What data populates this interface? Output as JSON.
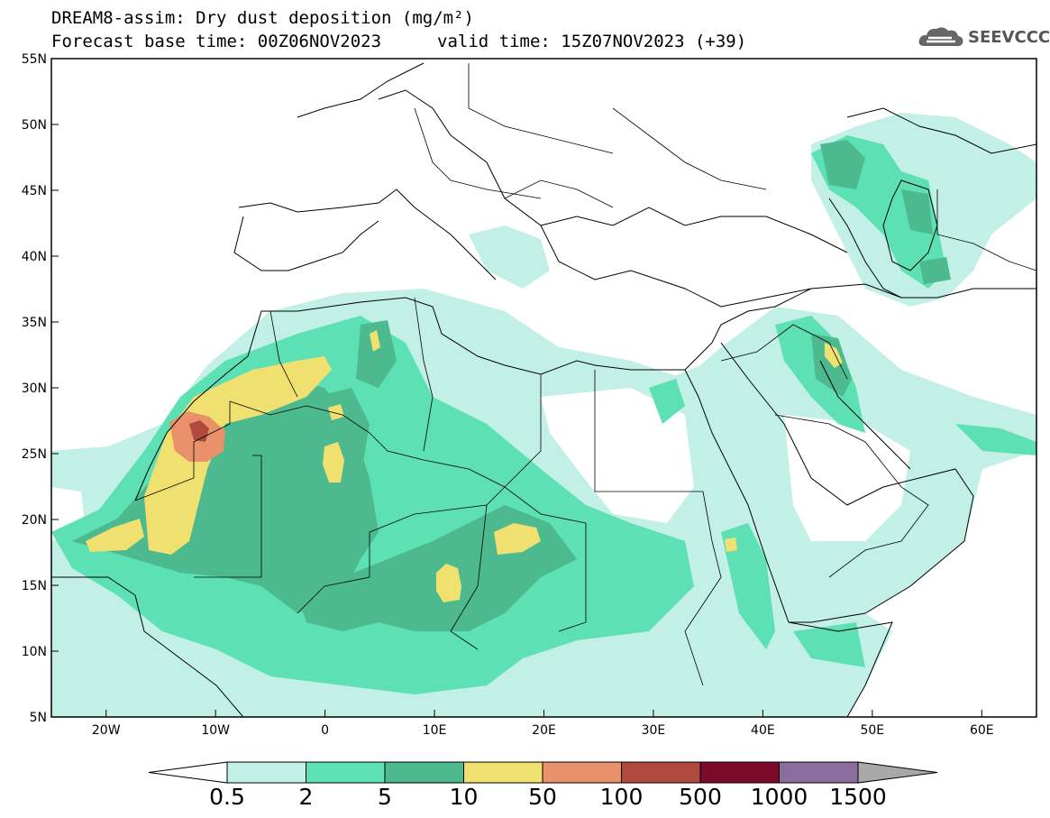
{
  "title": {
    "line1": "DREAM8-assim: Dry dust deposition (mg/m²)",
    "base_time": "Forecast base time: 00Z06NOV2023",
    "valid_time": "valid time: 15Z07NOV2023 (+39)"
  },
  "logo": {
    "text": "SEEVCCC",
    "icon": "cloud-logo-icon"
  },
  "map": {
    "lon_range": [
      -25,
      65
    ],
    "lat_range": [
      5,
      55
    ],
    "x_ticks": [
      "20W",
      "10W",
      "0",
      "10E",
      "20E",
      "30E",
      "40E",
      "50E",
      "60E"
    ],
    "y_ticks": [
      "55N",
      "50N",
      "45N",
      "40N",
      "35N",
      "30N",
      "25N",
      "20N",
      "15N",
      "10N",
      "5N"
    ]
  },
  "colorbar": {
    "labels": [
      "0.5",
      "2",
      "5",
      "10",
      "50",
      "100",
      "500",
      "1000",
      "1500"
    ],
    "colors": [
      "#c2f0e6",
      "#5ce0b4",
      "#4cb98e",
      "#f0e070",
      "#e8916a",
      "#b04a3e",
      "#7a0a2a",
      "#8b6c9c"
    ],
    "below_color": "#ffffff",
    "above_color": "#a8a8a8"
  }
}
